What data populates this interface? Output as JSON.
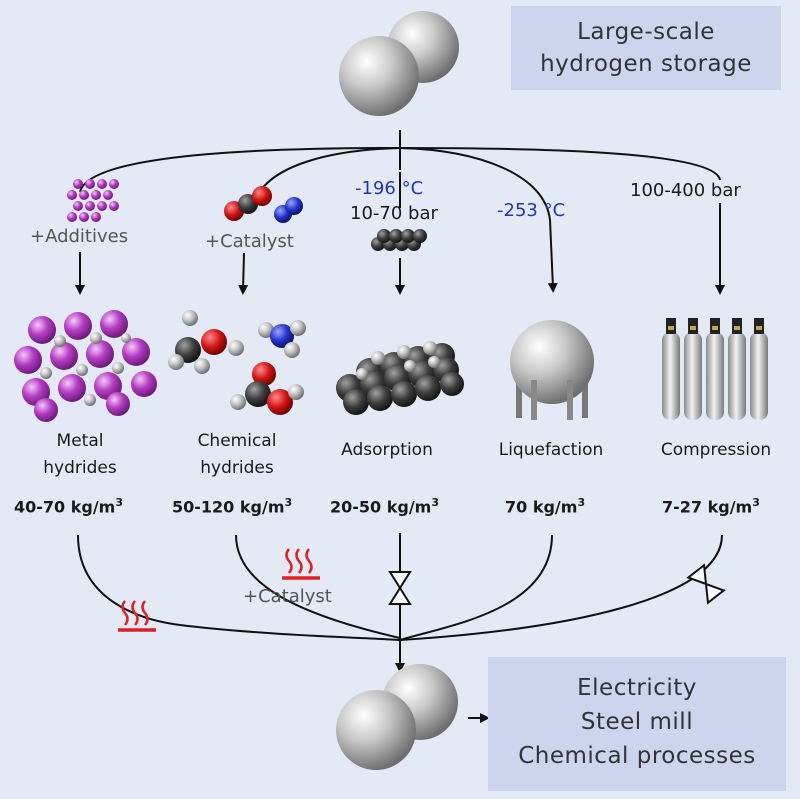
{
  "title": {
    "line1": "Large-scale",
    "line2": "hydrogen storage"
  },
  "inputs": {
    "additives": "+Additives",
    "catalyst": "+Catalyst",
    "adsorption_temp": "-196 °C",
    "adsorption_pressure": "10-70 bar",
    "liquefaction_temp": "-253 °C",
    "compression_pressure": "100-400 bar"
  },
  "methods": [
    {
      "line1": "Metal",
      "line2": "hydrides",
      "density": "40-70 kg/m",
      "unit_exp": "3"
    },
    {
      "line1": "Chemical",
      "line2": "hydrides",
      "density": "50-120 kg/m",
      "unit_exp": "3"
    },
    {
      "line1": "Adsorption",
      "line2": "",
      "density": "20-50 kg/m",
      "unit_exp": "3"
    },
    {
      "line1": "Liquefaction",
      "line2": "",
      "density": "70 kg/m",
      "unit_exp": "3"
    },
    {
      "line1": "Compression",
      "line2": "",
      "density": "7-27 kg/m",
      "unit_exp": "3"
    }
  ],
  "release": {
    "catalyst": "+Catalyst"
  },
  "outputs": {
    "line1": "Electricity",
    "line2": "Steel mill",
    "line3": "Chemical processes"
  },
  "colors": {
    "background": "#e3e9f5",
    "box": "#cbd6ee",
    "temperature": "#2236b8",
    "heat": "#e02020",
    "metal": "#b53cc4"
  }
}
